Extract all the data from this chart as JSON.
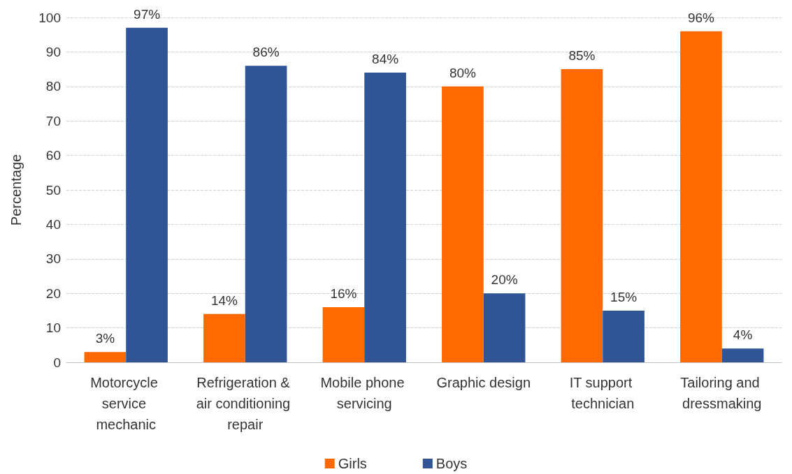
{
  "chart_data": {
    "type": "bar",
    "ylabel": "Percentage",
    "categories": [
      "Motorcycle service mechanic",
      "Refrigeration & air conditioning repair",
      "Mobile phone servicing",
      "Graphic design",
      "IT support technician",
      "Tailoring and dressmaking"
    ],
    "series": [
      {
        "name": "Girls",
        "color": "#ff6a00",
        "values": [
          3,
          14,
          16,
          80,
          85,
          96
        ],
        "value_labels": [
          "3%",
          "14%",
          "16%",
          "80%",
          "85%",
          "96%"
        ]
      },
      {
        "name": "Boys",
        "color": "#2f5597",
        "values": [
          97,
          86,
          84,
          20,
          15,
          4
        ],
        "value_labels": [
          "97%",
          "86%",
          "84%",
          "20%",
          "15%",
          "4%"
        ]
      }
    ],
    "ylim": [
      0,
      100
    ],
    "yticks": [
      0,
      10,
      20,
      30,
      40,
      50,
      60,
      70,
      80,
      90,
      100
    ],
    "grid": "y",
    "legend": "bottom"
  }
}
